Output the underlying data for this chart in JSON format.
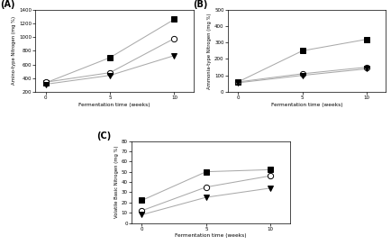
{
  "x": [
    0,
    5,
    10
  ],
  "panel_A": {
    "title": "(A)",
    "ylabel": "Amino-type Nitrogen (mg %)",
    "xlabel": "Fermentation time (weeks)",
    "ylim": [
      200,
      1400
    ],
    "yticks": [
      200,
      400,
      600,
      800,
      1000,
      1200,
      1400
    ],
    "series": [
      {
        "marker": "s",
        "fillstyle": "full",
        "y": [
          330,
          700,
          1260
        ]
      },
      {
        "marker": "o",
        "fillstyle": "none",
        "y": [
          340,
          480,
          980
        ]
      },
      {
        "marker": "v",
        "fillstyle": "full",
        "y": [
          310,
          440,
          730
        ]
      }
    ]
  },
  "panel_B": {
    "title": "(B)",
    "ylabel": "Ammonia-type Nitrogen (mg %)",
    "xlabel": "Fermentation time (weeks)",
    "ylim": [
      0,
      500
    ],
    "yticks": [
      0,
      100,
      200,
      300,
      400,
      500
    ],
    "series": [
      {
        "marker": "s",
        "fillstyle": "full",
        "y": [
          60,
          250,
          320
        ]
      },
      {
        "marker": "o",
        "fillstyle": "none",
        "y": [
          60,
          110,
          150
        ]
      },
      {
        "marker": "v",
        "fillstyle": "full",
        "y": [
          55,
          100,
          140
        ]
      }
    ]
  },
  "panel_C": {
    "title": "(C)",
    "ylabel": "Volatile Basic Nitrogen (mg %)",
    "xlabel": "Fermentation time (weeks)",
    "ylim": [
      0,
      80
    ],
    "yticks": [
      0,
      10,
      20,
      30,
      40,
      50,
      60,
      70,
      80
    ],
    "series": [
      {
        "marker": "s",
        "fillstyle": "full",
        "y": [
          22,
          50,
          52
        ]
      },
      {
        "marker": "o",
        "fillstyle": "none",
        "y": [
          12,
          35,
          46
        ]
      },
      {
        "marker": "v",
        "fillstyle": "full",
        "y": [
          8,
          25,
          34
        ]
      }
    ]
  },
  "line_color": "#aaaaaa",
  "markersize": 4.5,
  "linewidth": 0.75
}
